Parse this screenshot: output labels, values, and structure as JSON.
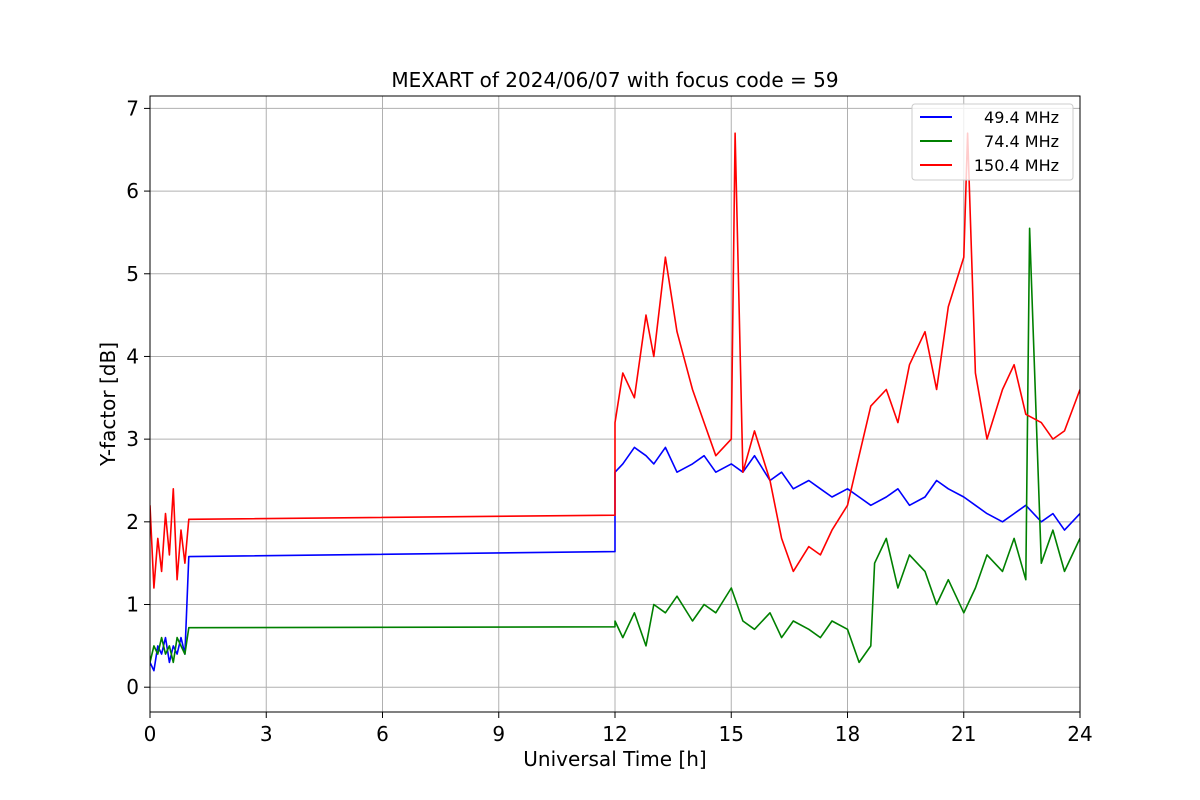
{
  "chart_data": {
    "type": "line",
    "title": "MEXART of 2024/06/07 with focus code = 59",
    "xlabel": "Universal Time [h]",
    "ylabel": "Y-factor [dB]",
    "xlim": [
      0,
      24
    ],
    "ylim": [
      -0.3,
      7.15
    ],
    "xticks": [
      0,
      3,
      6,
      9,
      12,
      15,
      18,
      21,
      24
    ],
    "xtick_labels": [
      "0",
      "3",
      "6",
      "9",
      "12",
      "15",
      "18",
      "21",
      "24"
    ],
    "yticks": [
      0,
      1,
      2,
      3,
      4,
      5,
      6,
      7
    ],
    "ytick_labels": [
      "0",
      "1",
      "2",
      "3",
      "4",
      "5",
      "6",
      "7"
    ],
    "grid": true,
    "legend_position": "top-right",
    "series": [
      {
        "name": "49.4 MHz",
        "color": "#0000ff",
        "x": [
          0,
          0.1,
          0.2,
          0.3,
          0.4,
          0.5,
          0.6,
          0.7,
          0.8,
          0.9,
          1.0,
          12.0,
          12.0,
          12.2,
          12.5,
          12.8,
          13.0,
          13.3,
          13.6,
          14.0,
          14.3,
          14.6,
          15.0,
          15.3,
          15.6,
          16.0,
          16.3,
          16.6,
          17.0,
          17.3,
          17.6,
          18.0,
          18.3,
          18.6,
          19.0,
          19.3,
          19.6,
          20.0,
          20.3,
          20.6,
          21.0,
          21.3,
          21.6,
          22.0,
          22.3,
          22.6,
          23.0,
          23.3,
          23.6,
          24.0
        ],
        "y": [
          0.3,
          0.2,
          0.5,
          0.4,
          0.6,
          0.3,
          0.5,
          0.4,
          0.6,
          0.4,
          1.58,
          1.64,
          2.6,
          2.7,
          2.9,
          2.8,
          2.7,
          2.9,
          2.6,
          2.7,
          2.8,
          2.6,
          2.7,
          2.6,
          2.8,
          2.5,
          2.6,
          2.4,
          2.5,
          2.4,
          2.3,
          2.4,
          2.3,
          2.2,
          2.3,
          2.4,
          2.2,
          2.3,
          2.5,
          2.4,
          2.3,
          2.2,
          2.1,
          2.0,
          2.1,
          2.2,
          2.0,
          2.1,
          1.9,
          2.1
        ]
      },
      {
        "name": "74.4 MHz",
        "color": "#008000",
        "x": [
          0,
          0.1,
          0.2,
          0.3,
          0.4,
          0.5,
          0.6,
          0.7,
          0.8,
          0.9,
          1.0,
          12.0,
          12.0,
          12.2,
          12.5,
          12.8,
          13.0,
          13.3,
          13.6,
          14.0,
          14.3,
          14.6,
          15.0,
          15.3,
          15.6,
          16.0,
          16.3,
          16.6,
          17.0,
          17.3,
          17.6,
          18.0,
          18.3,
          18.6,
          18.7,
          19.0,
          19.3,
          19.6,
          20.0,
          20.3,
          20.6,
          21.0,
          21.3,
          21.6,
          22.0,
          22.3,
          22.6,
          22.7,
          23.0,
          23.3,
          23.6,
          24.0
        ],
        "y": [
          0.3,
          0.5,
          0.4,
          0.6,
          0.4,
          0.5,
          0.3,
          0.6,
          0.5,
          0.4,
          0.72,
          0.73,
          0.8,
          0.6,
          0.9,
          0.5,
          1.0,
          0.9,
          1.1,
          0.8,
          1.0,
          0.9,
          1.2,
          0.8,
          0.7,
          0.9,
          0.6,
          0.8,
          0.7,
          0.6,
          0.8,
          0.7,
          0.3,
          0.5,
          1.5,
          1.8,
          1.2,
          1.6,
          1.4,
          1.0,
          1.3,
          0.9,
          1.2,
          1.6,
          1.4,
          1.8,
          1.3,
          5.55,
          1.5,
          1.9,
          1.4,
          1.8
        ]
      },
      {
        "name": "150.4 MHz",
        "color": "#ff0000",
        "x": [
          0,
          0.1,
          0.2,
          0.3,
          0.4,
          0.5,
          0.6,
          0.7,
          0.8,
          0.9,
          1.0,
          12.0,
          12.0,
          12.2,
          12.5,
          12.8,
          13.0,
          13.3,
          13.6,
          14.0,
          14.3,
          14.6,
          15.0,
          15.1,
          15.3,
          15.6,
          16.0,
          16.3,
          16.6,
          17.0,
          17.3,
          17.6,
          18.0,
          18.3,
          18.6,
          19.0,
          19.3,
          19.6,
          20.0,
          20.3,
          20.6,
          21.0,
          21.1,
          21.3,
          21.6,
          22.0,
          22.3,
          22.6,
          23.0,
          23.3,
          23.6,
          24.0
        ],
        "y": [
          2.2,
          1.2,
          1.8,
          1.4,
          2.1,
          1.6,
          2.4,
          1.3,
          1.9,
          1.5,
          2.03,
          2.08,
          3.2,
          3.8,
          3.5,
          4.5,
          4.0,
          5.2,
          4.3,
          3.6,
          3.2,
          2.8,
          3.0,
          6.7,
          2.6,
          3.1,
          2.5,
          1.8,
          1.4,
          1.7,
          1.6,
          1.9,
          2.2,
          2.8,
          3.4,
          3.6,
          3.2,
          3.9,
          4.3,
          3.6,
          4.6,
          5.2,
          6.7,
          3.8,
          3.0,
          3.6,
          3.9,
          3.3,
          3.2,
          3.0,
          3.1,
          3.6
        ]
      }
    ]
  }
}
